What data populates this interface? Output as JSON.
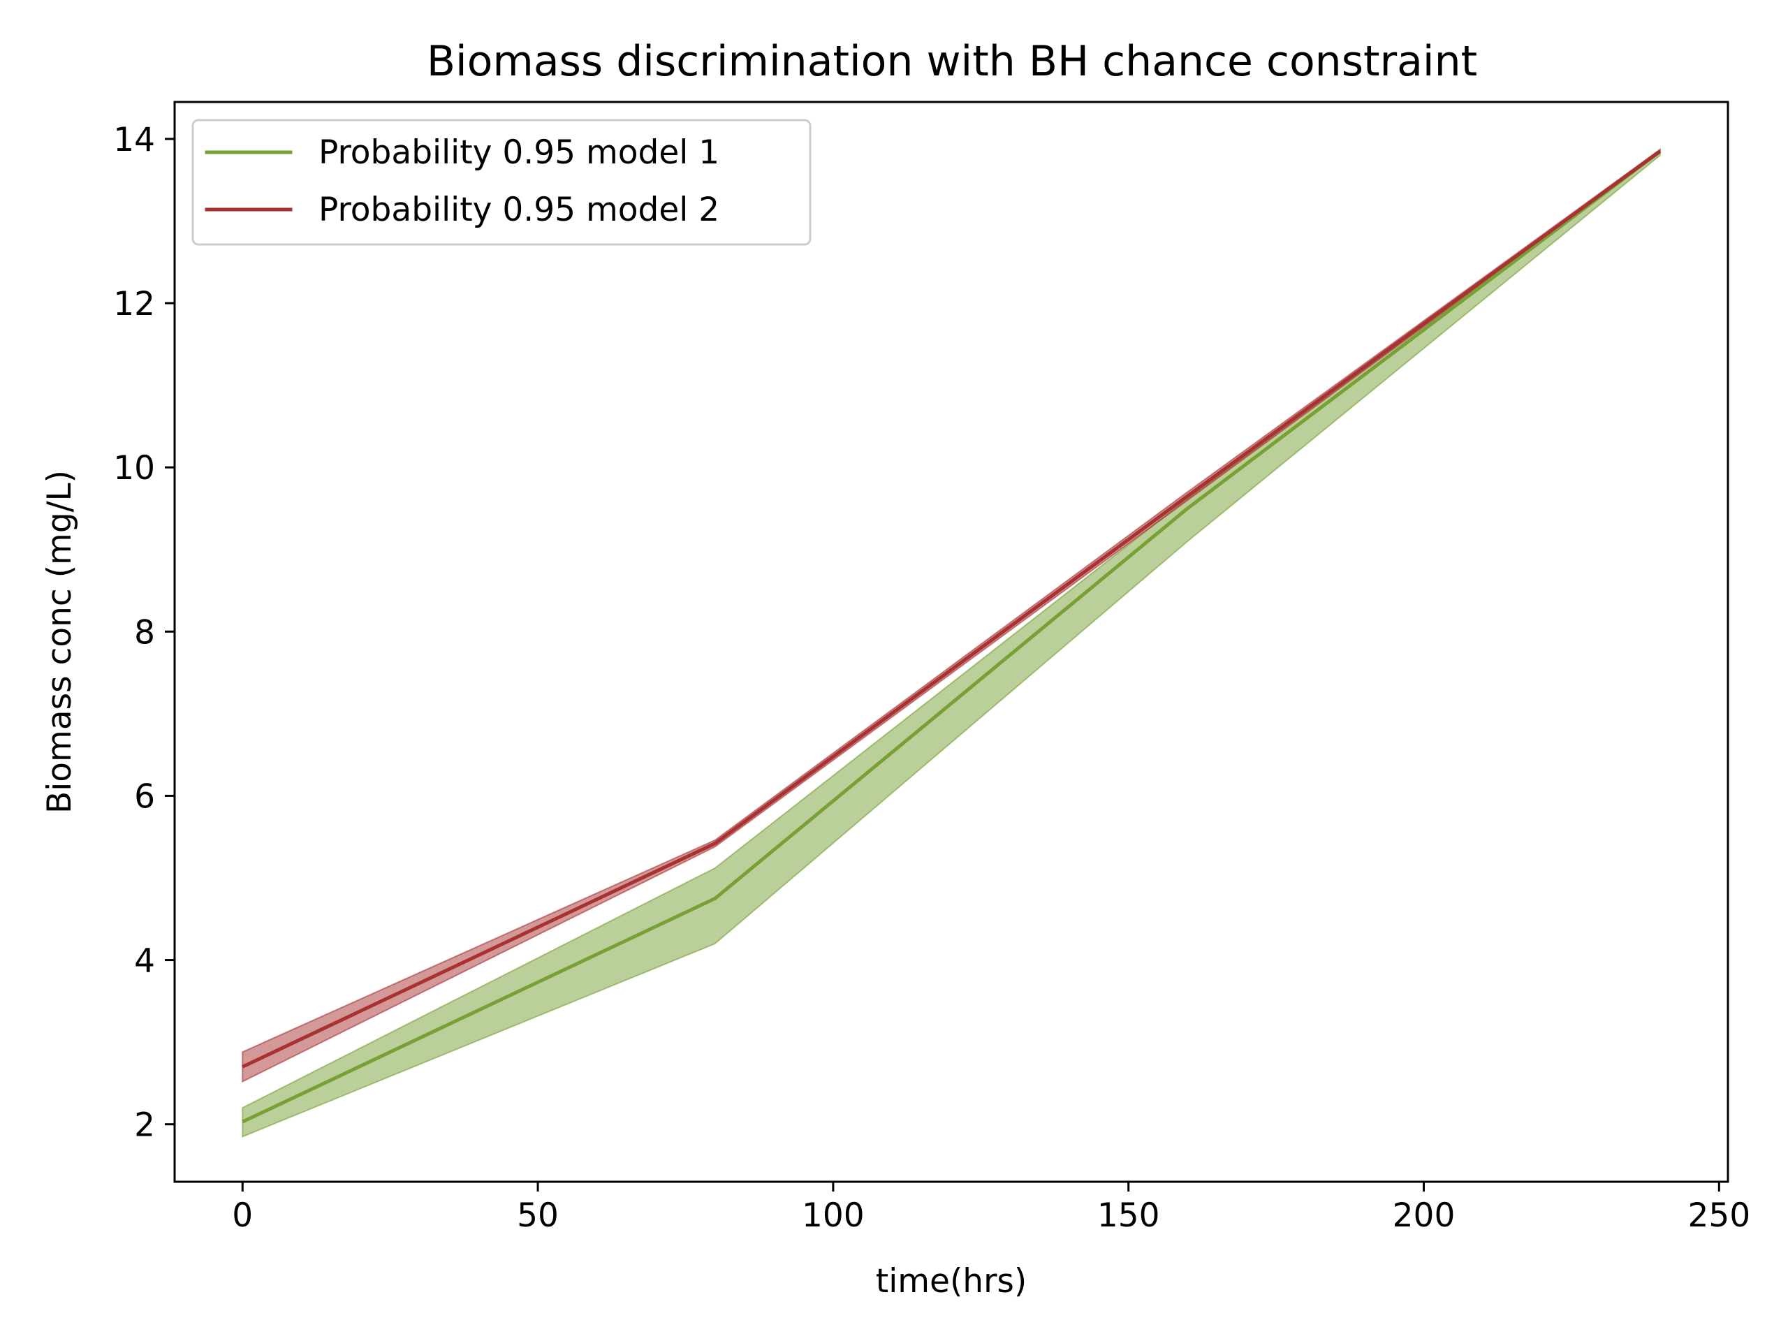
{
  "chart_data": {
    "type": "line",
    "title": "Biomass discrimination with BH chance constraint",
    "xlabel": "time(hrs)",
    "ylabel": "Biomass conc (mg/L)",
    "xlim": [
      -11.5,
      251.5
    ],
    "ylim": [
      1.3,
      14.45
    ],
    "xticks": [
      0,
      50,
      100,
      150,
      200,
      250
    ],
    "yticks": [
      2,
      4,
      6,
      8,
      10,
      12,
      14
    ],
    "legend_position": "upper-left",
    "grid": false,
    "series": [
      {
        "name": "Probability 0.95 model 1",
        "color": "#77a035",
        "band_color": "#77a035",
        "x": [
          0,
          80,
          160,
          240
        ],
        "values": [
          2.03,
          4.75,
          9.5,
          13.85
        ],
        "lower": [
          1.85,
          4.2,
          9.1,
          13.8
        ],
        "upper": [
          2.2,
          5.12,
          9.62,
          13.87
        ]
      },
      {
        "name": "Probability 0.95 model 2",
        "color": "#a83232",
        "band_color": "#a83232",
        "x": [
          0,
          80,
          160,
          240
        ],
        "values": [
          2.7,
          5.42,
          9.65,
          13.85
        ],
        "lower": [
          2.52,
          5.38,
          9.6,
          13.83
        ],
        "upper": [
          2.88,
          5.46,
          9.7,
          13.87
        ]
      }
    ]
  }
}
